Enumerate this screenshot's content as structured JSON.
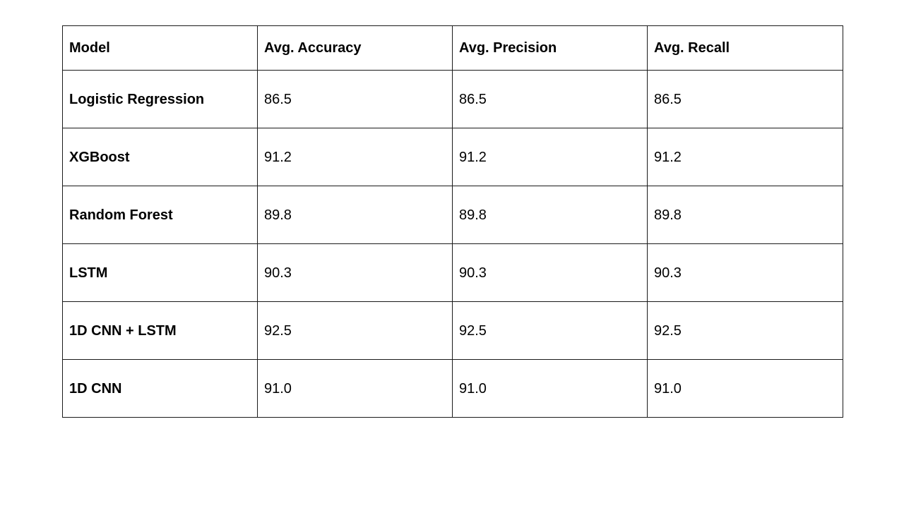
{
  "table": {
    "headers": [
      "Model",
      "Avg. Accuracy",
      "Avg. Precision",
      "Avg. Recall"
    ],
    "rows": [
      [
        "Logistic Regression",
        "86.5",
        "86.5",
        "86.5"
      ],
      [
        "XGBoost",
        "91.2",
        "91.2",
        "91.2"
      ],
      [
        "Random Forest",
        "89.8",
        "89.8",
        "89.8"
      ],
      [
        "LSTM",
        "90.3",
        "90.3",
        "90.3"
      ],
      [
        "1D CNN + LSTM",
        "92.5",
        "92.5",
        "92.5"
      ],
      [
        "1D CNN",
        "91.0",
        "91.0",
        "91.0"
      ]
    ]
  }
}
